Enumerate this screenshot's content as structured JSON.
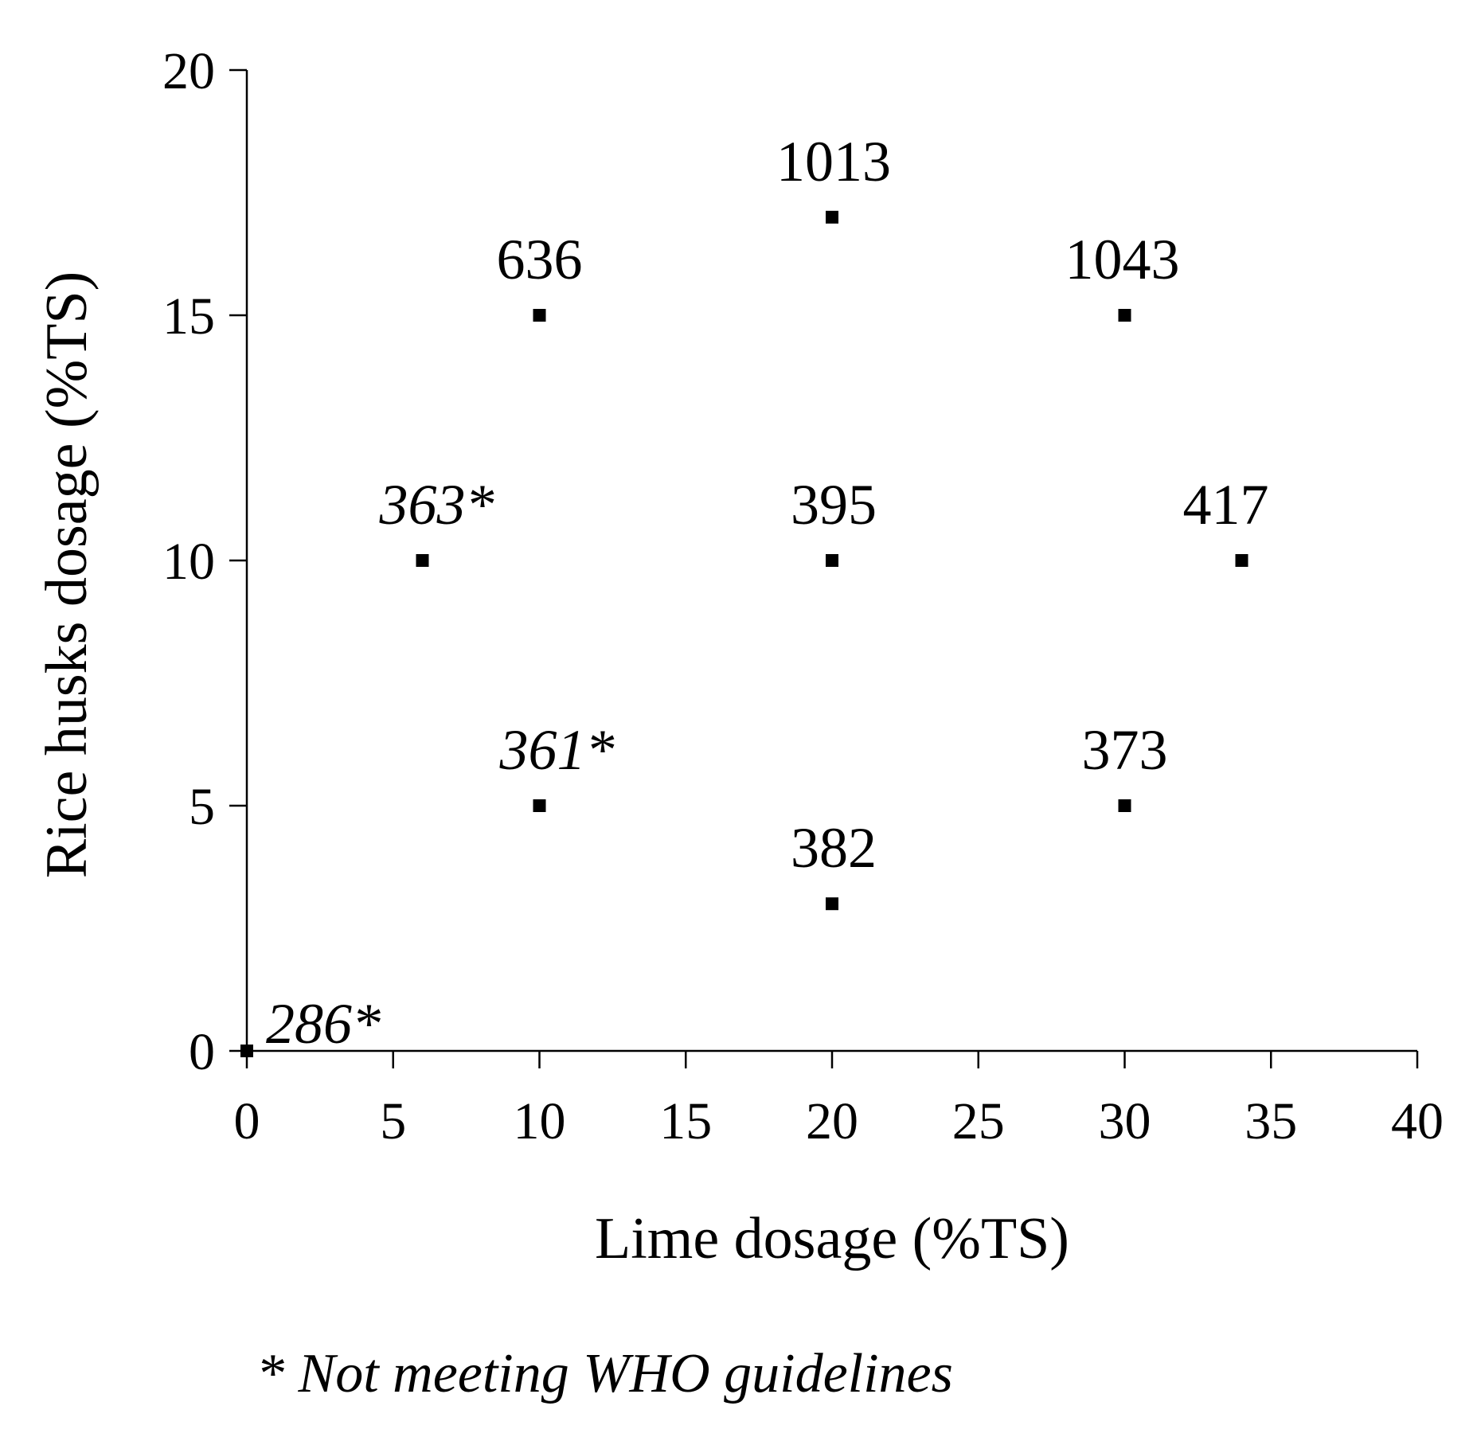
{
  "chart_data": {
    "type": "scatter",
    "xlabel": "Lime dosage (%TS)",
    "ylabel": "Rice husks dosage (%TS)",
    "xlim": [
      0,
      40
    ],
    "ylim": [
      0,
      20
    ],
    "xticks": [
      "0",
      "5",
      "10",
      "15",
      "20",
      "25",
      "30",
      "35",
      "40"
    ],
    "yticks": [
      "0",
      "5",
      "10",
      "15",
      "20"
    ],
    "grid": false,
    "marker": "square",
    "marker_color": "#000000",
    "points": [
      {
        "x": 0,
        "y": 0,
        "label": "286*",
        "flagged": true
      },
      {
        "x": 6,
        "y": 10,
        "label": "363*",
        "flagged": true
      },
      {
        "x": 10,
        "y": 5,
        "label": "361*",
        "flagged": true
      },
      {
        "x": 10,
        "y": 15,
        "label": "636",
        "flagged": false
      },
      {
        "x": 20,
        "y": 3,
        "label": "382",
        "flagged": false
      },
      {
        "x": 20,
        "y": 10,
        "label": "395",
        "flagged": false
      },
      {
        "x": 20,
        "y": 17,
        "label": "1013",
        "flagged": false
      },
      {
        "x": 30,
        "y": 5,
        "label": "373",
        "flagged": false
      },
      {
        "x": 30,
        "y": 15,
        "label": "1043",
        "flagged": false
      },
      {
        "x": 34,
        "y": 10,
        "label": "417",
        "flagged": false
      }
    ],
    "footnote": "* Not meeting WHO guidelines"
  }
}
